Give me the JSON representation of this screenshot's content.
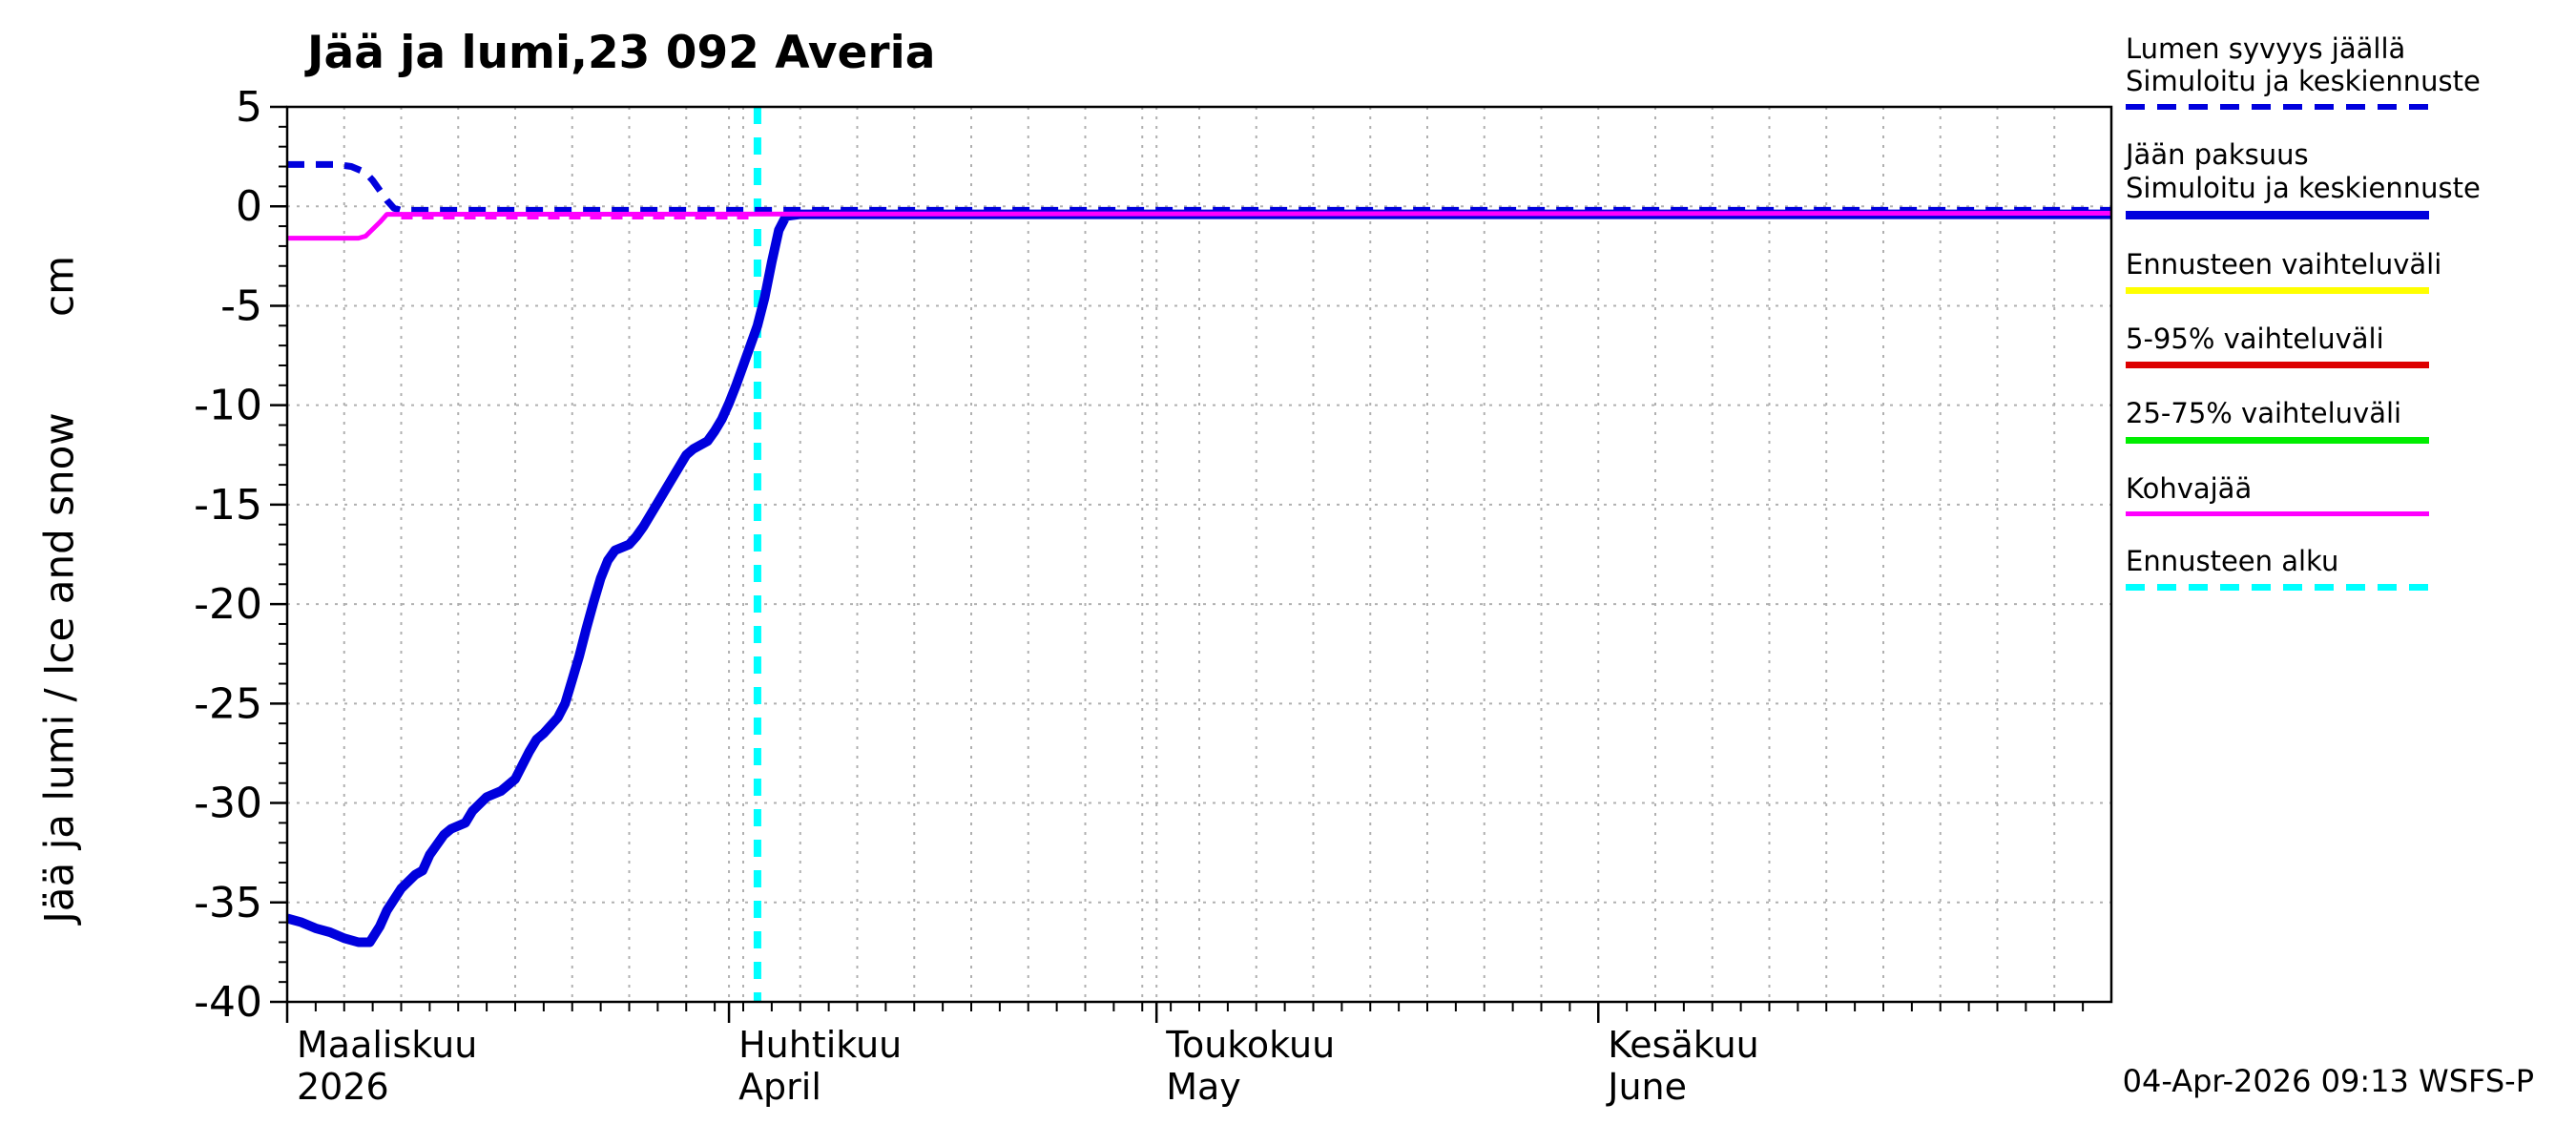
{
  "title": "Jää ja lumi,23 092 Averia",
  "ylabel": "Jää ja lumi / Ice and snow",
  "ylabel_unit": "cm",
  "timestamp": "04-Apr-2026 09:13 WSFS-P",
  "colors": {
    "simulated_blue": "#0000dd",
    "kohvajaa_magenta": "#ff00ff",
    "forecast_cyan": "#00ffff",
    "range_yellow": "#ffff00",
    "range_red": "#dd0000",
    "range_green": "#00ee00",
    "grid_gray": "#b0b0b0"
  },
  "chart_data": {
    "type": "line",
    "title": "Jää ja lumi,23 092 Averia",
    "xlabel": "",
    "ylabel": "Jää ja lumi / Ice and snow  cm",
    "x_unit": "days from 2026-03-01",
    "xlim": [
      0,
      128
    ],
    "ylim": [
      -40,
      5
    ],
    "yticks": [
      5,
      0,
      -5,
      -10,
      -15,
      -20,
      -25,
      -30,
      -35,
      -40
    ],
    "grid": true,
    "months": [
      {
        "label": "Maaliskuu",
        "sublabel": "2026",
        "day": 0
      },
      {
        "label": "Huhtikuu",
        "sublabel": "April",
        "day": 31
      },
      {
        "label": "Toukokuu",
        "sublabel": "May",
        "day": 61
      },
      {
        "label": "Kesäkuu",
        "sublabel": "June",
        "day": 92
      }
    ],
    "forecast_start_day": 33,
    "series": [
      {
        "name": "lumen-syvyys-jaalla",
        "label": "Lumen syvyys jäällä - Simuloitu ja keskiennuste",
        "color": "#0000dd",
        "width": 7,
        "dash": "18 12",
        "points": [
          [
            0,
            2.1
          ],
          [
            3.5,
            2.1
          ],
          [
            4.5,
            2.0
          ],
          [
            5.5,
            1.7
          ],
          [
            6,
            1.3
          ],
          [
            6.5,
            0.8
          ],
          [
            7,
            0.3
          ],
          [
            7.5,
            -0.1
          ],
          [
            8,
            -0.2
          ],
          [
            128,
            -0.2
          ]
        ]
      },
      {
        "name": "kohvajaa-keskiennuste",
        "label": "Kohvajää ennuste",
        "color": "#ff00ff",
        "width": 4.5,
        "dash": "12 10",
        "points": [
          [
            8,
            -0.55
          ],
          [
            33,
            -0.55
          ]
        ]
      },
      {
        "name": "jaan-paksuus",
        "label": "Jään paksuus - Simuloitu ja keskiennuste",
        "color": "#0000dd",
        "width": 10,
        "dash": "",
        "points": [
          [
            0,
            -35.8
          ],
          [
            1,
            -36.0
          ],
          [
            2,
            -36.3
          ],
          [
            3,
            -36.5
          ],
          [
            4,
            -36.8
          ],
          [
            5,
            -37.0
          ],
          [
            5.8,
            -37.0
          ],
          [
            6.5,
            -36.2
          ],
          [
            7,
            -35.4
          ],
          [
            8,
            -34.3
          ],
          [
            9,
            -33.6
          ],
          [
            9.5,
            -33.4
          ],
          [
            10,
            -32.6
          ],
          [
            11,
            -31.6
          ],
          [
            11.5,
            -31.3
          ],
          [
            12.5,
            -31.0
          ],
          [
            13,
            -30.4
          ],
          [
            14,
            -29.7
          ],
          [
            15,
            -29.4
          ],
          [
            16,
            -28.8
          ],
          [
            17,
            -27.4
          ],
          [
            17.5,
            -26.8
          ],
          [
            18,
            -26.5
          ],
          [
            19,
            -25.7
          ],
          [
            19.5,
            -25.0
          ],
          [
            20,
            -23.8
          ],
          [
            20.5,
            -22.6
          ],
          [
            21,
            -21.2
          ],
          [
            21.5,
            -19.9
          ],
          [
            22,
            -18.7
          ],
          [
            22.5,
            -17.8
          ],
          [
            23,
            -17.3
          ],
          [
            24,
            -17.0
          ],
          [
            24.5,
            -16.6
          ],
          [
            25,
            -16.1
          ],
          [
            26,
            -14.9
          ],
          [
            27,
            -13.7
          ],
          [
            27.5,
            -13.1
          ],
          [
            28,
            -12.5
          ],
          [
            28.5,
            -12.2
          ],
          [
            29.5,
            -11.8
          ],
          [
            30,
            -11.3
          ],
          [
            30.5,
            -10.7
          ],
          [
            31,
            -9.9
          ],
          [
            31.5,
            -9.0
          ],
          [
            32,
            -8.0
          ],
          [
            32.5,
            -7.0
          ],
          [
            33,
            -6.0
          ],
          [
            33.5,
            -4.6
          ],
          [
            34,
            -2.8
          ],
          [
            34.5,
            -1.2
          ],
          [
            35,
            -0.5
          ],
          [
            36,
            -0.4
          ],
          [
            128,
            -0.4
          ]
        ]
      },
      {
        "name": "kohvajaa",
        "label": "Kohvajää",
        "color": "#ff00ff",
        "width": 5,
        "dash": "",
        "points": [
          [
            0,
            -1.6
          ],
          [
            5,
            -1.6
          ],
          [
            5.5,
            -1.5
          ],
          [
            6.5,
            -0.8
          ],
          [
            7,
            -0.4
          ],
          [
            128,
            -0.35
          ]
        ]
      }
    ]
  },
  "legend": [
    {
      "label": "Lumen syvyys jäällä",
      "sublabel": "Simuloitu ja keskiennuste",
      "color": "#0000dd",
      "style": "dashed",
      "thickness": 6
    },
    {
      "label": "Jään paksuus",
      "sublabel": "Simuloitu ja keskiennuste",
      "color": "#0000dd",
      "style": "solid",
      "thickness": 9
    },
    {
      "label": "Ennusteen vaihteluväli",
      "sublabel": "",
      "color": "#ffff00",
      "style": "solid",
      "thickness": 7
    },
    {
      "label": "5-95% vaihteluväli",
      "sublabel": "",
      "color": "#dd0000",
      "style": "solid",
      "thickness": 7
    },
    {
      "label": "25-75% vaihteluväli",
      "sublabel": "",
      "color": "#00ee00",
      "style": "solid",
      "thickness": 7
    },
    {
      "label": "Kohvajää",
      "sublabel": "",
      "color": "#ff00ff",
      "style": "solid",
      "thickness": 5
    },
    {
      "label": "Ennusteen alku",
      "sublabel": "",
      "color": "#00ffff",
      "style": "dashed",
      "thickness": 7
    }
  ]
}
